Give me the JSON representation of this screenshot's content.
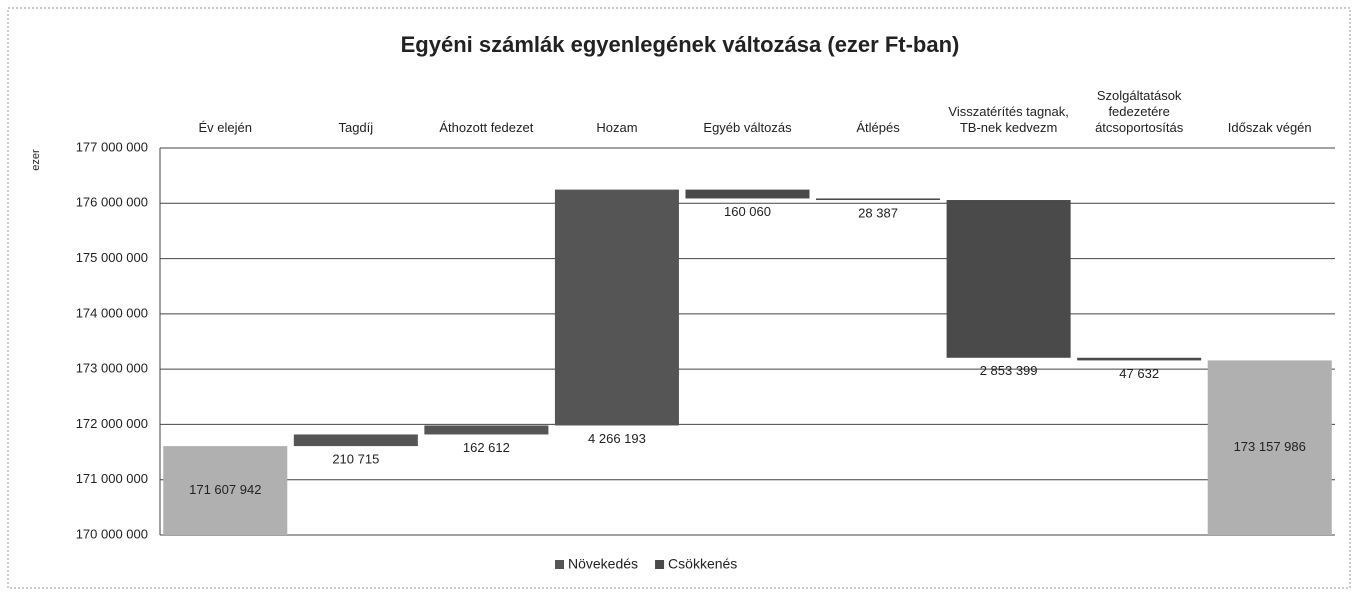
{
  "chart_data": {
    "type": "waterfall",
    "title": "Egyéni számlák egyenlegének változása (ezer Ft-ban)",
    "y_label": "ezer",
    "categories": [
      "Év elején",
      "Tagdíj",
      "Áthozott fedezet",
      "Hozam",
      "Egyéb változás",
      "Átlépés",
      "Visszatérítés tagnak, TB-nek kedvezm",
      "Szolgáltatások fedezetére átcsoportosítás",
      "Időszak végén"
    ],
    "values": [
      171607942,
      210715,
      162612,
      4266193,
      -160060,
      -28387,
      -2853399,
      -47632,
      173157986
    ],
    "value_labels": [
      "171 607 942",
      "210 715",
      "162 612",
      "4 266 193",
      "160 060",
      "28 387",
      "2 853 399",
      "47 632",
      "173 157 986"
    ],
    "ylim": [
      170000000,
      177000000
    ],
    "yticks": [
      {
        "value": 170000000,
        "label": "170 000 000"
      },
      {
        "value": 171000000,
        "label": "171 000 000"
      },
      {
        "value": 172000000,
        "label": "172 000 000"
      },
      {
        "value": 173000000,
        "label": "173 000 000"
      },
      {
        "value": 174000000,
        "label": "174 000 000"
      },
      {
        "value": 175000000,
        "label": "175 000 000"
      },
      {
        "value": 176000000,
        "label": "176 000 000"
      },
      {
        "value": 177000000,
        "label": "177 000 000"
      }
    ],
    "grid": true,
    "legend": [
      {
        "name": "Növekedés",
        "color": "#555555"
      },
      {
        "name": "Csökkenés",
        "color": "#4a4a4a"
      }
    ],
    "total_color": "#b0b0b0"
  }
}
